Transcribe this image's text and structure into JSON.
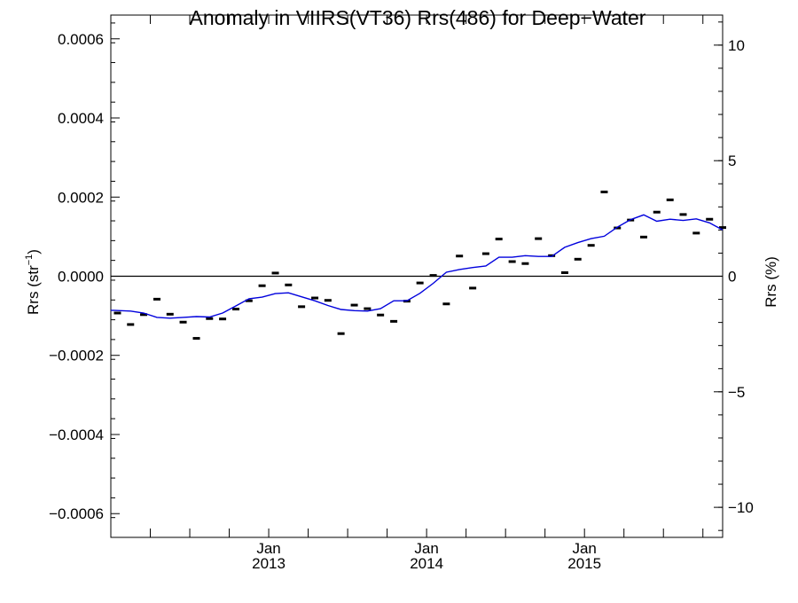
{
  "chart_data": {
    "type": "line",
    "title": "Anomaly in VIIRS(VT36) Rrs(486) for Deep−Water",
    "ylabel_left": "Rrs (str",
    "ylabel_left_sup": "−1",
    "ylabel_left_close": ")",
    "ylabel_right": "Rrs (%)",
    "xlabel": "",
    "xlim": [
      2012.0,
      2015.875
    ],
    "ylim_left": [
      -0.00066,
      0.00066
    ],
    "ylim_right": [
      -11.3,
      11.3
    ],
    "grid": false,
    "x_month_labels": [
      "Jan",
      "Jan",
      "Jan"
    ],
    "x_year_labels": [
      "2013",
      "2014",
      "2015"
    ],
    "x_label_positions": [
      2013.0,
      2014.0,
      2015.0
    ],
    "left_ticks": [
      {
        "value": 0.0006,
        "label": "0.0006"
      },
      {
        "value": 0.0004,
        "label": "0.0004"
      },
      {
        "value": 0.0002,
        "label": "0.0002"
      },
      {
        "value": 0.0,
        "label": "0.0000"
      },
      {
        "value": -0.0002,
        "label": "−0.0002"
      },
      {
        "value": -0.0004,
        "label": "−0.0004"
      },
      {
        "value": -0.0006,
        "label": "−0.0006"
      }
    ],
    "right_ticks": [
      {
        "value": 10,
        "label": "10"
      },
      {
        "value": 5,
        "label": "5"
      },
      {
        "value": 0,
        "label": "0"
      },
      {
        "value": -5,
        "label": "−5"
      },
      {
        "value": -10,
        "label": "−10"
      }
    ],
    "zero_line": 0.0,
    "series": [
      {
        "kind": "monthly_markers",
        "color": "#000000",
        "x": [
          2012.042,
          2012.125,
          2012.208,
          2012.292,
          2012.375,
          2012.458,
          2012.542,
          2012.625,
          2012.708,
          2012.792,
          2012.875,
          2012.958,
          2013.042,
          2013.125,
          2013.208,
          2013.292,
          2013.375,
          2013.458,
          2013.542,
          2013.625,
          2013.708,
          2013.792,
          2013.875,
          2013.958,
          2014.042,
          2014.125,
          2014.208,
          2014.292,
          2014.375,
          2014.458,
          2014.542,
          2014.625,
          2014.708,
          2014.792,
          2014.875,
          2014.958,
          2015.042,
          2015.125,
          2015.208,
          2015.292,
          2015.375,
          2015.458,
          2015.542,
          2015.625,
          2015.708,
          2015.792,
          2015.875
        ],
        "values": [
          -9.3e-05,
          -0.000122,
          -9.7e-05,
          -5.8e-05,
          -9.6e-05,
          -0.000116,
          -0.000157,
          -0.000107,
          -0.000108,
          -8.3e-05,
          -6.2e-05,
          -2.4e-05,
          8e-06,
          -2.2e-05,
          -7.7e-05,
          -5.5e-05,
          -6.1e-05,
          -0.000145,
          -7.3e-05,
          -8.2e-05,
          -9.8e-05,
          -0.000114,
          -6.3e-05,
          -1.7e-05,
          2e-06,
          -7e-05,
          5.1e-05,
          -3e-05,
          5.7e-05,
          9.4e-05,
          3.7e-05,
          3.2e-05,
          9.5e-05,
          5.2e-05,
          9e-06,
          4.3e-05,
          7.8e-05,
          0.000213,
          0.000122,
          0.000142,
          9.9e-05,
          0.000162,
          0.000193,
          0.000156,
          0.000109,
          0.000144,
          0.000123
        ]
      },
      {
        "kind": "running_mean",
        "color": "#0000dd",
        "x": [
          2012.0,
          2012.125,
          2012.208,
          2012.292,
          2012.375,
          2012.458,
          2012.542,
          2012.625,
          2012.708,
          2012.792,
          2012.875,
          2012.958,
          2013.042,
          2013.125,
          2013.208,
          2013.292,
          2013.375,
          2013.458,
          2013.542,
          2013.625,
          2013.708,
          2013.792,
          2013.875,
          2013.958,
          2014.042,
          2014.125,
          2014.208,
          2014.292,
          2014.375,
          2014.458,
          2014.542,
          2014.625,
          2014.708,
          2014.792,
          2014.875,
          2014.958,
          2015.042,
          2015.125,
          2015.208,
          2015.292,
          2015.375,
          2015.458,
          2015.542,
          2015.625,
          2015.708,
          2015.792,
          2015.875
        ],
        "values": [
          -8.6e-05,
          -8.8e-05,
          -9.3e-05,
          -0.000104,
          -0.000106,
          -0.000104,
          -0.000102,
          -0.000103,
          -9.3e-05,
          -7.5e-05,
          -5.7e-05,
          -5.3e-05,
          -4.4e-05,
          -4.2e-05,
          -5.2e-05,
          -6.2e-05,
          -7.4e-05,
          -8.4e-05,
          -8.7e-05,
          -8.8e-05,
          -8.2e-05,
          -6.2e-05,
          -6.2e-05,
          -4.3e-05,
          -1.8e-05,
          1e-05,
          1.7e-05,
          2.2e-05,
          2.6e-05,
          4.8e-05,
          4.8e-05,
          5.2e-05,
          5e-05,
          5e-05,
          7.3e-05,
          8.5e-05,
          9.5e-05,
          0.000101,
          0.000124,
          0.000143,
          0.000155,
          0.000139,
          0.000144,
          0.000141,
          0.000145,
          0.000135,
          0.000117
        ]
      }
    ]
  }
}
